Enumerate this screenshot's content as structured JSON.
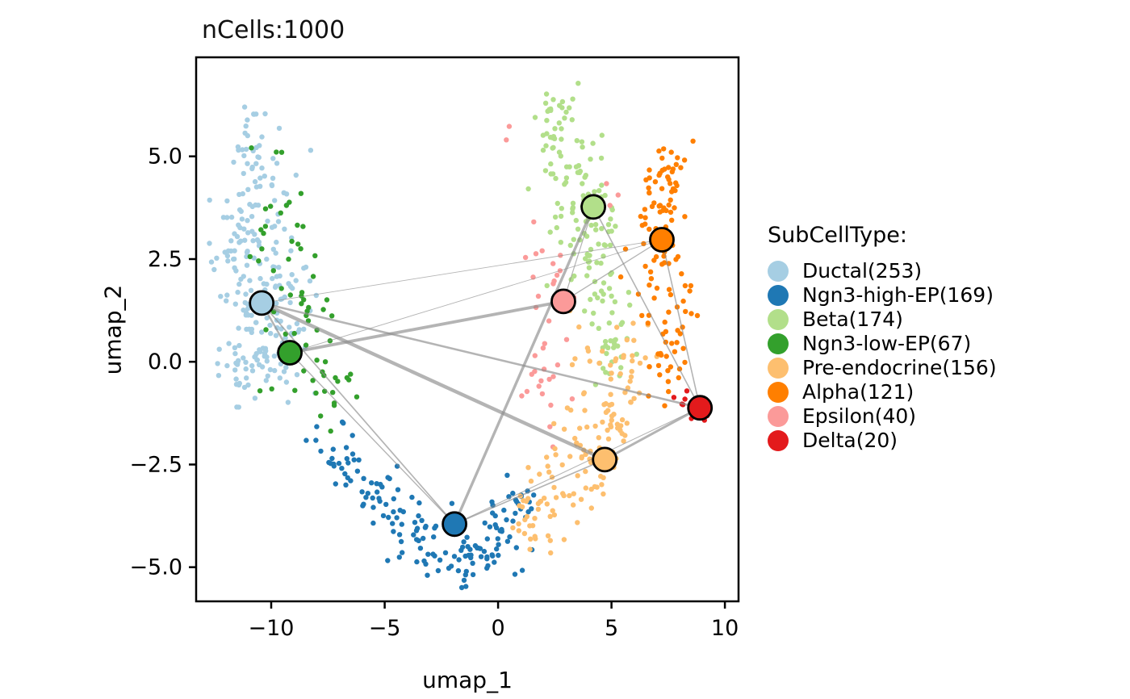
{
  "figure": {
    "title": "nCells:1000",
    "xlabel": "umap_1",
    "ylabel": "umap_2"
  },
  "legend": {
    "title": "SubCellType:",
    "items": [
      {
        "label": "Ductal(253)",
        "color": "#a6cee3"
      },
      {
        "label": "Ngn3-high-EP(169)",
        "color": "#1f78b4"
      },
      {
        "label": "Beta(174)",
        "color": "#b2df8a"
      },
      {
        "label": "Ngn3-low-EP(67)",
        "color": "#33a02c"
      },
      {
        "label": "Pre-endocrine(156)",
        "color": "#fdbf6f"
      },
      {
        "label": "Alpha(121)",
        "color": "#ff7f00"
      },
      {
        "label": "Epsilon(40)",
        "color": "#fb9a99"
      },
      {
        "label": "Delta(20)",
        "color": "#e31a1c"
      }
    ]
  },
  "style": {
    "edge_color": "#8c8c8c",
    "edge_opacity": 0.65,
    "axis_color": "#000000",
    "centroid_stroke": "#000000",
    "point_radius": 3.2,
    "centroid_radius": 14.5
  },
  "chart_data": {
    "type": "scatter",
    "title": "nCells:1000",
    "xlabel": "umap_1",
    "ylabel": "umap_2",
    "n_cells_total": 1000,
    "xlim": [
      -13.31,
      10.6
    ],
    "ylim": [
      -5.83,
      7.41
    ],
    "grid": false,
    "legend_position": "right",
    "x_ticks": [
      {
        "v": -10,
        "label": "−10"
      },
      {
        "v": -5,
        "label": "−5"
      },
      {
        "v": 0,
        "label": "0"
      },
      {
        "v": 5,
        "label": "5"
      },
      {
        "v": 10,
        "label": "10"
      }
    ],
    "y_ticks": [
      {
        "v": 5.0,
        "label": "5.0"
      },
      {
        "v": 2.5,
        "label": "2.5"
      },
      {
        "v": 0.0,
        "label": "0.0"
      },
      {
        "v": -2.5,
        "label": "−2.5"
      },
      {
        "v": -5.0,
        "label": "−5.0"
      }
    ],
    "clusters": [
      {
        "name": "Ductal",
        "count": 253,
        "color": "#a6cee3",
        "centroid": {
          "x": -10.42,
          "y": 1.43
        },
        "blobs": [
          {
            "x": -10.6,
            "y": 4.9,
            "sx": 0.5,
            "sy": 0.7,
            "n": 40
          },
          {
            "x": -11.3,
            "y": 3.1,
            "sx": 0.75,
            "sy": 0.75,
            "n": 55
          },
          {
            "x": -10.4,
            "y": 1.3,
            "sx": 1.0,
            "sy": 0.9,
            "n": 80
          },
          {
            "x": -10.9,
            "y": -0.2,
            "sx": 0.75,
            "sy": 0.6,
            "n": 45
          },
          {
            "x": -9.2,
            "y": 2.3,
            "sx": 0.55,
            "sy": 1.2,
            "n": 33
          }
        ]
      },
      {
        "name": "Ngn3-low-EP",
        "count": 67,
        "color": "#33a02c",
        "centroid": {
          "x": -9.18,
          "y": 0.22
        },
        "blobs": [
          {
            "x": -9.6,
            "y": 3.5,
            "sx": 0.7,
            "sy": 0.9,
            "n": 12
          },
          {
            "x": -8.6,
            "y": 1.2,
            "sx": 0.7,
            "sy": 1.0,
            "n": 25
          },
          {
            "x": -7.3,
            "y": -0.6,
            "sx": 0.8,
            "sy": 0.6,
            "n": 20
          },
          {
            "x": -10.4,
            "y": 2.0,
            "sx": 0.8,
            "sy": 1.2,
            "n": 10
          }
        ]
      },
      {
        "name": "Ngn3-high-EP",
        "count": 169,
        "color": "#1f78b4",
        "centroid": {
          "x": -1.92,
          "y": -3.95
        },
        "blobs": [
          {
            "x": -6.9,
            "y": -2.3,
            "sx": 0.65,
            "sy": 0.5,
            "n": 25
          },
          {
            "x": -5.2,
            "y": -3.3,
            "sx": 0.7,
            "sy": 0.5,
            "n": 30
          },
          {
            "x": -3.3,
            "y": -4.35,
            "sx": 0.7,
            "sy": 0.45,
            "n": 35
          },
          {
            "x": -1.3,
            "y": -4.8,
            "sx": 0.7,
            "sy": 0.4,
            "n": 38
          },
          {
            "x": 0.3,
            "y": -4.3,
            "sx": 0.6,
            "sy": 0.5,
            "n": 26
          },
          {
            "x": 1.0,
            "y": -3.4,
            "sx": 0.45,
            "sy": 0.45,
            "n": 15
          }
        ]
      },
      {
        "name": "Beta",
        "count": 174,
        "color": "#b2df8a",
        "centroid": {
          "x": 4.2,
          "y": 3.77
        },
        "blobs": [
          {
            "x": 2.6,
            "y": 5.8,
            "sx": 0.5,
            "sy": 0.5,
            "n": 30
          },
          {
            "x": 3.2,
            "y": 4.6,
            "sx": 0.65,
            "sy": 0.6,
            "n": 40
          },
          {
            "x": 3.9,
            "y": 3.3,
            "sx": 0.7,
            "sy": 0.7,
            "n": 45
          },
          {
            "x": 4.6,
            "y": 2.0,
            "sx": 0.6,
            "sy": 0.8,
            "n": 35
          },
          {
            "x": 4.9,
            "y": 0.7,
            "sx": 0.5,
            "sy": 0.6,
            "n": 24
          }
        ]
      },
      {
        "name": "Epsilon",
        "count": 40,
        "color": "#fb9a99",
        "centroid": {
          "x": 2.88,
          "y": 1.47
        },
        "blobs": [
          {
            "x": 2.4,
            "y": 2.2,
            "sx": 0.7,
            "sy": 0.6,
            "n": 12
          },
          {
            "x": 2.2,
            "y": 0.7,
            "sx": 0.6,
            "sy": 0.8,
            "n": 14
          },
          {
            "x": 1.7,
            "y": -0.9,
            "sx": 0.5,
            "sy": 0.6,
            "n": 9
          },
          {
            "x": 5.35,
            "y": 4.1,
            "sx": 0.35,
            "sy": 0.3,
            "n": 3
          },
          {
            "x": 1.0,
            "y": 5.6,
            "sx": 0.5,
            "sy": 0.8,
            "n": 2
          }
        ]
      },
      {
        "name": "Pre-endocrine",
        "count": 156,
        "color": "#fdbf6f",
        "centroid": {
          "x": 4.7,
          "y": -2.38
        },
        "blobs": [
          {
            "x": 1.7,
            "y": -3.9,
            "sx": 0.6,
            "sy": 0.5,
            "n": 25
          },
          {
            "x": 2.9,
            "y": -3.0,
            "sx": 0.7,
            "sy": 0.6,
            "n": 35
          },
          {
            "x": 4.2,
            "y": -2.0,
            "sx": 0.7,
            "sy": 0.7,
            "n": 40
          },
          {
            "x": 5.3,
            "y": -1.0,
            "sx": 0.55,
            "sy": 0.6,
            "n": 33
          },
          {
            "x": 5.9,
            "y": 0.1,
            "sx": 0.45,
            "sy": 0.5,
            "n": 15
          },
          {
            "x": 3.8,
            "y": 0.3,
            "sx": 0.5,
            "sy": 0.5,
            "n": 8
          }
        ]
      },
      {
        "name": "Alpha",
        "count": 121,
        "color": "#ff7f00",
        "centroid": {
          "x": 7.22,
          "y": 2.97
        },
        "blobs": [
          {
            "x": 7.4,
            "y": 4.5,
            "sx": 0.6,
            "sy": 0.55,
            "n": 35
          },
          {
            "x": 7.1,
            "y": 3.2,
            "sx": 0.7,
            "sy": 0.7,
            "n": 30
          },
          {
            "x": 7.3,
            "y": 1.8,
            "sx": 0.6,
            "sy": 0.7,
            "n": 28
          },
          {
            "x": 7.5,
            "y": 0.3,
            "sx": 0.5,
            "sy": 0.7,
            "n": 28
          }
        ]
      },
      {
        "name": "Delta",
        "count": 20,
        "color": "#e31a1c",
        "centroid": {
          "x": 8.9,
          "y": -1.12
        },
        "blobs": [
          {
            "x": 8.95,
            "y": -1.1,
            "sx": 0.28,
            "sy": 0.2,
            "n": 16
          },
          {
            "x": 8.1,
            "y": -0.9,
            "sx": 0.22,
            "sy": 0.12,
            "n": 4
          }
        ]
      },
      {
        "name": "_total",
        "count": 1000,
        "color": "",
        "centroid": null,
        "blobs": []
      }
    ],
    "edges": [
      {
        "a": "Ductal",
        "b": "Ngn3-low-EP",
        "width": 2.4
      },
      {
        "a": "Ductal",
        "b": "Ngn3-high-EP",
        "width": 1.7
      },
      {
        "a": "Ductal",
        "b": "Pre-endocrine",
        "width": 4.4
      },
      {
        "a": "Ductal",
        "b": "Delta",
        "width": 2.6
      },
      {
        "a": "Ductal",
        "b": "Alpha",
        "width": 0.9
      },
      {
        "a": "Ngn3-low-EP",
        "b": "Ngn3-high-EP",
        "width": 1.4
      },
      {
        "a": "Ngn3-low-EP",
        "b": "Epsilon",
        "width": 3.8
      },
      {
        "a": "Ngn3-low-EP",
        "b": "Alpha",
        "width": 0.9
      },
      {
        "a": "Ngn3-high-EP",
        "b": "Beta",
        "width": 3.4
      },
      {
        "a": "Ngn3-high-EP",
        "b": "Pre-endocrine",
        "width": 1.7
      },
      {
        "a": "Ngn3-high-EP",
        "b": "Delta",
        "width": 1.1
      },
      {
        "a": "Pre-endocrine",
        "b": "Delta",
        "width": 3.0
      },
      {
        "a": "Beta",
        "b": "Delta",
        "width": 1.6
      },
      {
        "a": "Beta",
        "b": "Epsilon",
        "width": 1.2
      },
      {
        "a": "Alpha",
        "b": "Delta",
        "width": 1.6
      },
      {
        "a": "Alpha",
        "b": "Epsilon",
        "width": 1.3
      }
    ]
  }
}
